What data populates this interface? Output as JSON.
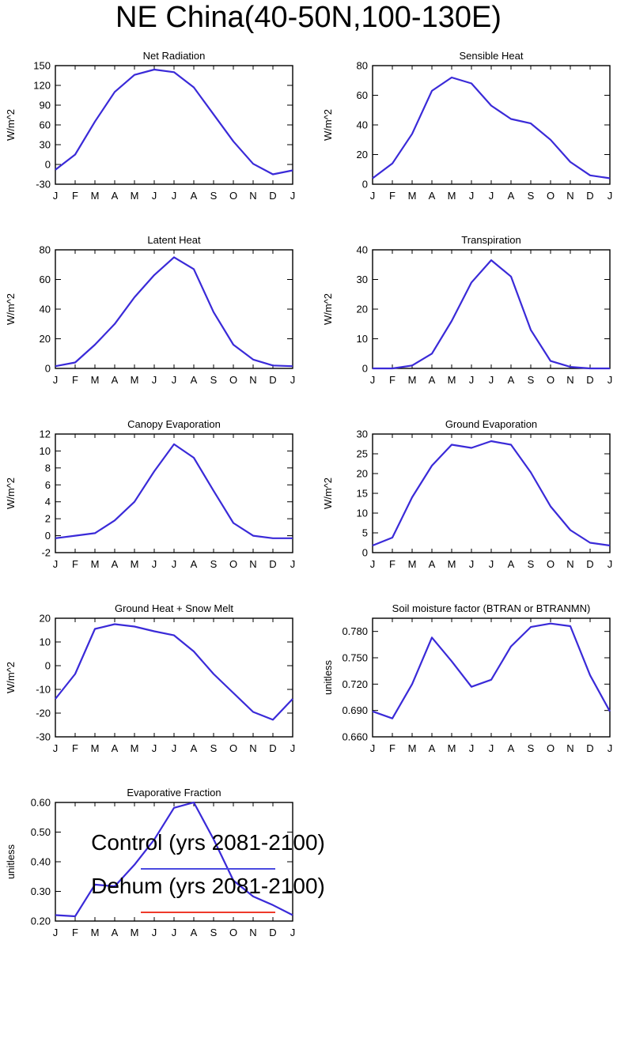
{
  "title": "NE China(40-50N,100-130E)",
  "month_labels": [
    "J",
    "F",
    "M",
    "A",
    "M",
    "J",
    "J",
    "A",
    "S",
    "O",
    "N",
    "D",
    "J"
  ],
  "colors": {
    "control": "#3333ee",
    "dehum": "#ee3333",
    "overlap": "#3a2ad8"
  },
  "legend": [
    {
      "label": "Control (yrs 2081-2100)",
      "color": "#4a4ae0"
    },
    {
      "label": "Dehum (yrs 2081-2100)",
      "color": "#ee3a2a"
    }
  ],
  "chart_data": [
    {
      "type": "line",
      "title": "Net Radiation",
      "ylabel": "W/m^2",
      "ylim": [
        -30,
        150
      ],
      "yticks": [
        "-30",
        "0",
        "30",
        "60",
        "90",
        "120",
        "150"
      ],
      "series": [
        {
          "values": [
            -8,
            15,
            65,
            110,
            136,
            144,
            140,
            117,
            76,
            35,
            1,
            -15,
            -9
          ]
        }
      ]
    },
    {
      "type": "line",
      "title": "Sensible Heat",
      "ylabel": "W/m^2",
      "ylim": [
        0,
        80
      ],
      "yticks": [
        "0",
        "20",
        "40",
        "60",
        "80"
      ],
      "series": [
        {
          "values": [
            4,
            14,
            34,
            63,
            72,
            68,
            53,
            44,
            41,
            30,
            15,
            6,
            4
          ]
        }
      ]
    },
    {
      "type": "line",
      "title": "Latent Heat",
      "ylabel": "W/m^2",
      "ylim": [
        0,
        80
      ],
      "yticks": [
        "0",
        "20",
        "40",
        "60",
        "80"
      ],
      "series": [
        {
          "values": [
            1.5,
            4,
            16,
            30,
            48,
            63,
            75,
            67,
            38,
            16,
            6,
            2,
            1.5
          ]
        }
      ]
    },
    {
      "type": "line",
      "title": "Transpiration",
      "ylabel": "W/m^2",
      "ylim": [
        0,
        40
      ],
      "yticks": [
        "0",
        "10",
        "20",
        "30",
        "40"
      ],
      "series": [
        {
          "values": [
            0,
            0,
            1,
            5,
            16,
            29,
            36.5,
            31,
            13,
            2.5,
            0.5,
            0,
            0
          ]
        }
      ]
    },
    {
      "type": "line",
      "title": "Canopy Evaporation",
      "ylabel": "W/m^2",
      "ylim": [
        -2,
        12
      ],
      "yticks": [
        "-2",
        "0",
        "2",
        "4",
        "6",
        "8",
        "10",
        "12"
      ],
      "series": [
        {
          "values": [
            -0.3,
            0,
            0.3,
            1.8,
            4,
            7.6,
            10.8,
            9.2,
            5.3,
            1.5,
            0,
            -0.3,
            -0.3
          ]
        }
      ]
    },
    {
      "type": "line",
      "title": "Ground Evaporation",
      "ylabel": "W/m^2",
      "ylim": [
        0,
        30
      ],
      "yticks": [
        "0",
        "5",
        "10",
        "15",
        "20",
        "25",
        "30"
      ],
      "series": [
        {
          "values": [
            1.8,
            3.8,
            14,
            22,
            27.3,
            26.5,
            28.2,
            27.3,
            20.3,
            11.7,
            5.7,
            2.5,
            1.8
          ]
        }
      ]
    },
    {
      "type": "line",
      "title": "Ground Heat + Snow Melt",
      "ylabel": "W/m^2",
      "ylim": [
        -30,
        20
      ],
      "yticks": [
        "-30",
        "-20",
        "-10",
        "0",
        "10",
        "20"
      ],
      "series": [
        {
          "values": [
            -14,
            -3.5,
            15.5,
            17.5,
            16.5,
            14.5,
            12.8,
            6,
            -3.5,
            -11.5,
            -19.5,
            -22.8,
            -14
          ]
        }
      ]
    },
    {
      "type": "line",
      "title": "Soil moisture factor (BTRAN or BTRANMN)",
      "ylabel": "unitless",
      "ylim": [
        0.66,
        0.795
      ],
      "yticks": [
        "0.660",
        "0.690",
        "0.720",
        "0.750",
        "0.780"
      ],
      "series": [
        {
          "values": [
            0.689,
            0.681,
            0.72,
            0.773,
            0.746,
            0.717,
            0.725,
            0.763,
            0.785,
            0.789,
            0.786,
            0.73,
            0.689
          ]
        }
      ]
    },
    {
      "type": "line",
      "title": "Evaporative Fraction",
      "ylabel": "unitless",
      "ylim": [
        0.2,
        0.6
      ],
      "yticks": [
        "0.20",
        "0.30",
        "0.40",
        "0.50",
        "0.60"
      ],
      "series": [
        {
          "values": [
            0.22,
            0.216,
            0.323,
            0.317,
            0.39,
            0.475,
            0.582,
            0.6,
            0.476,
            0.337,
            0.283,
            0.254,
            0.22
          ]
        }
      ]
    }
  ]
}
